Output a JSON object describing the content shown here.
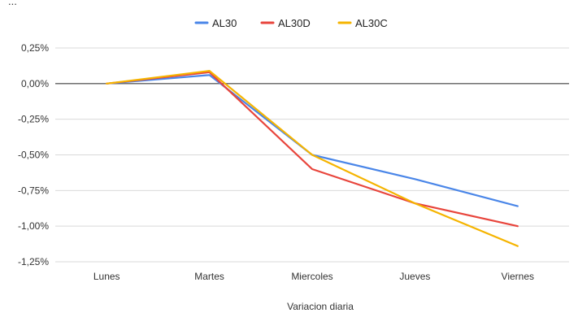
{
  "chart_data": {
    "type": "line",
    "title": "",
    "xlabel": "Variacion diaria",
    "ylabel": "",
    "categories": [
      "Lunes",
      "Martes",
      "Miercoles",
      "Jueves",
      "Viernes"
    ],
    "ylim": [
      -1.25,
      0.25
    ],
    "yticks": [
      "0,25%",
      "0,00%",
      "-0,25%",
      "-0,50%",
      "-0,75%",
      "-1,00%",
      "-1,25%"
    ],
    "ytick_values": [
      0.25,
      0.0,
      -0.25,
      -0.5,
      -0.75,
      -1.0,
      -1.25
    ],
    "grid": true,
    "legend_position": "top-center",
    "series": [
      {
        "name": "AL30",
        "color": "#4a86e8",
        "values": [
          0.0,
          0.06,
          -0.5,
          -0.67,
          -0.86
        ]
      },
      {
        "name": "AL30D",
        "color": "#e8453c",
        "values": [
          0.0,
          0.08,
          -0.6,
          -0.84,
          -1.0
        ]
      },
      {
        "name": "AL30C",
        "color": "#f5b400",
        "values": [
          0.0,
          0.09,
          -0.5,
          -0.84,
          -1.14
        ]
      }
    ]
  }
}
